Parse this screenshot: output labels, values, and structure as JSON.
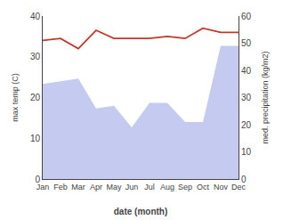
{
  "chart_data": {
    "type": "line",
    "categories": [
      "Jan",
      "Feb",
      "Mar",
      "Apr",
      "May",
      "Jun",
      "Jul",
      "Aug",
      "Sep",
      "Oct",
      "Nov",
      "Dec"
    ],
    "series": [
      {
        "type": "area",
        "axis": "y2",
        "color": "#c5caf0",
        "values": [
          35,
          36,
          37,
          26,
          27,
          19,
          28,
          28,
          21,
          21,
          49,
          49
        ]
      },
      {
        "type": "line",
        "color": "#c0392b",
        "values": [
          34,
          34.5,
          32,
          36.5,
          34.5,
          34.5,
          34.5,
          35,
          34.5,
          37,
          36,
          36
        ]
      }
    ],
    "xlabel": "date (month)",
    "ylabel": "max temp (C)",
    "y2label": "med. precipitation (kg/m2)",
    "ylim": [
      0,
      40
    ],
    "yticks": [
      0,
      10,
      20,
      30,
      40
    ],
    "y2lim": [
      0,
      60
    ],
    "y2ticks": [
      0,
      10,
      20,
      30,
      40,
      50,
      60
    ],
    "grid": false
  }
}
